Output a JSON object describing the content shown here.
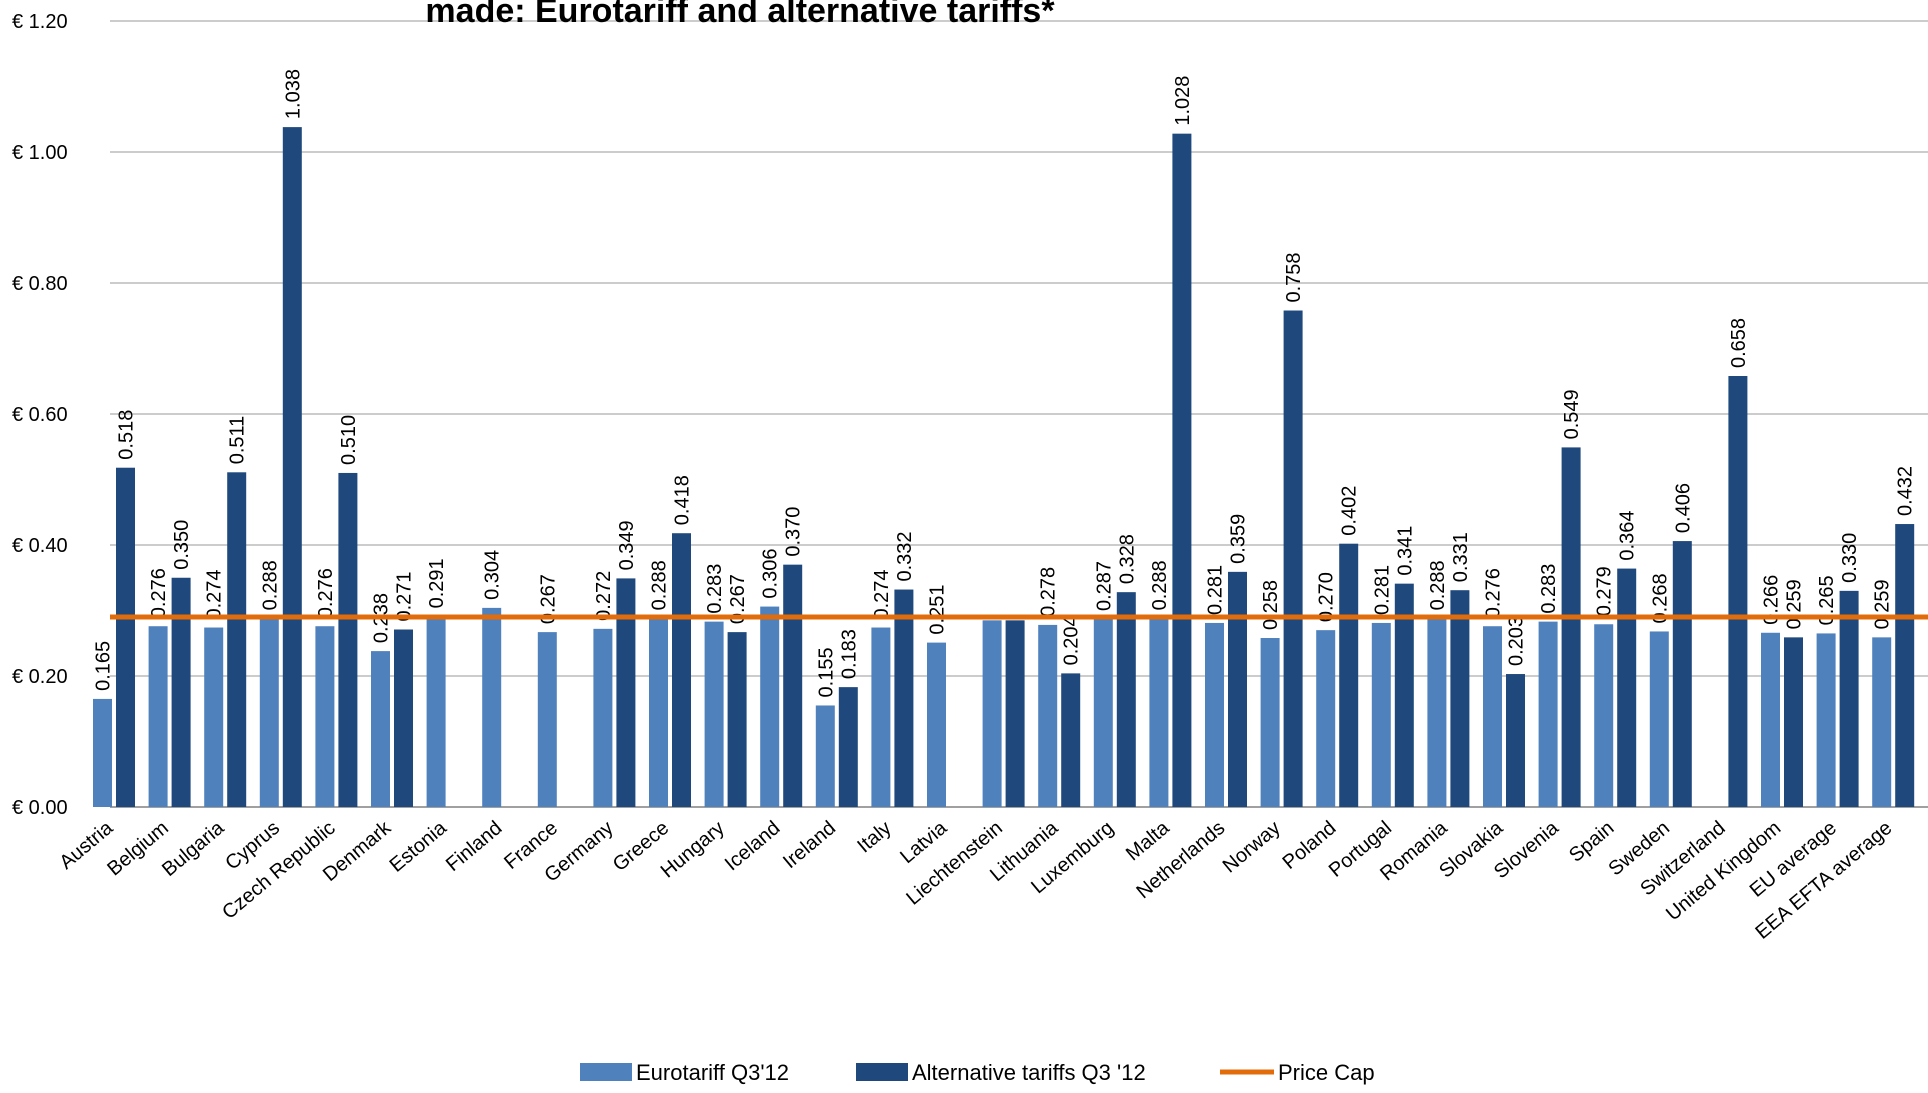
{
  "chart_data": {
    "type": "bar",
    "title": "made: Eurotariff and alternative tariffs*",
    "y_axis": {
      "min": 0,
      "max": 1.2,
      "tick_labels": [
        "€ 0.00",
        "€ 0.20",
        "€ 0.40",
        "€ 0.60",
        "€ 0.80",
        "€ 1.00",
        "€ 1.20"
      ],
      "tick_values": [
        0,
        0.2,
        0.4,
        0.6,
        0.8,
        1.0,
        1.2
      ],
      "grid": true
    },
    "categories": [
      "Austria",
      "Belgium",
      "Bulgaria",
      "Cyprus",
      "Czech Republic",
      "Denmark",
      "Estonia",
      "Finland",
      "France",
      "Germany",
      "Greece",
      "Hungary",
      "Iceland",
      "Ireland",
      "Italy",
      "Latvia",
      "Liechtenstein",
      "Lithuania",
      "Luxemburg",
      "Malta",
      "Netherlands",
      "Norway",
      "Poland",
      "Portugal",
      "Romania",
      "Slovakia",
      "Slovenia",
      "Spain",
      "Sweden",
      "Switzerland",
      "United Kingdom",
      "EU average",
      "EEA EFTA average"
    ],
    "series": [
      {
        "name": "Eurotariff Q3'12",
        "color": "#4f81bd",
        "values": [
          0.165,
          0.276,
          0.274,
          0.288,
          0.276,
          0.238,
          0.291,
          0.304,
          0.267,
          0.272,
          0.288,
          0.283,
          0.306,
          0.155,
          0.274,
          0.251,
          0.285,
          0.278,
          0.287,
          0.288,
          0.281,
          0.258,
          0.27,
          0.281,
          0.288,
          0.276,
          0.283,
          0.279,
          0.268,
          null,
          0.266,
          0.265,
          0.259
        ],
        "labels": [
          "0.165",
          "0.276",
          "0.274",
          "0.288",
          "0.276",
          "0.238",
          "0.291",
          "0.304",
          "0.267",
          "0.272",
          "0.288",
          "0.283",
          "0.306",
          "0.155",
          "0.274",
          "0.251",
          "",
          "0.278",
          "0.287",
          "0.288",
          "0.281",
          "0.258",
          "0.270",
          "0.281",
          "0.288",
          "0.276",
          "0.283",
          "0.279",
          "0.268",
          "",
          "0.266",
          "0.265",
          "0.259"
        ]
      },
      {
        "name": "Alternative tariffs Q3 '12",
        "color": "#1f497d",
        "values": [
          0.518,
          0.35,
          0.511,
          1.038,
          0.51,
          0.271,
          null,
          null,
          null,
          0.349,
          0.418,
          0.267,
          0.37,
          0.183,
          0.332,
          null,
          0.285,
          0.204,
          0.328,
          1.028,
          0.359,
          0.758,
          0.402,
          0.341,
          0.331,
          0.203,
          0.549,
          0.364,
          0.406,
          0.658,
          0.259,
          0.33,
          0.432
        ],
        "labels": [
          "0.518",
          "0.350",
          "0.511",
          "1.038",
          "0.510",
          "0.271",
          "",
          "",
          "",
          "0.349",
          "0.418",
          "0.267",
          "0.370",
          "0.183",
          "0.332",
          "",
          "",
          "0.204",
          "0.328",
          "1.028",
          "0.359",
          "0.758",
          "0.402",
          "0.341",
          "0.331",
          "0.203",
          "0.549",
          "0.364",
          "0.406",
          "0.658",
          "0.259",
          "0.330",
          "0.432"
        ]
      }
    ],
    "reference_line": {
      "name": "Price Cap",
      "value": 0.29,
      "color": "#e36c0a"
    },
    "legend": {
      "position": "bottom",
      "items": [
        "Eurotariff Q3'12",
        "Alternative tariffs Q3 '12",
        "Price Cap"
      ]
    }
  }
}
